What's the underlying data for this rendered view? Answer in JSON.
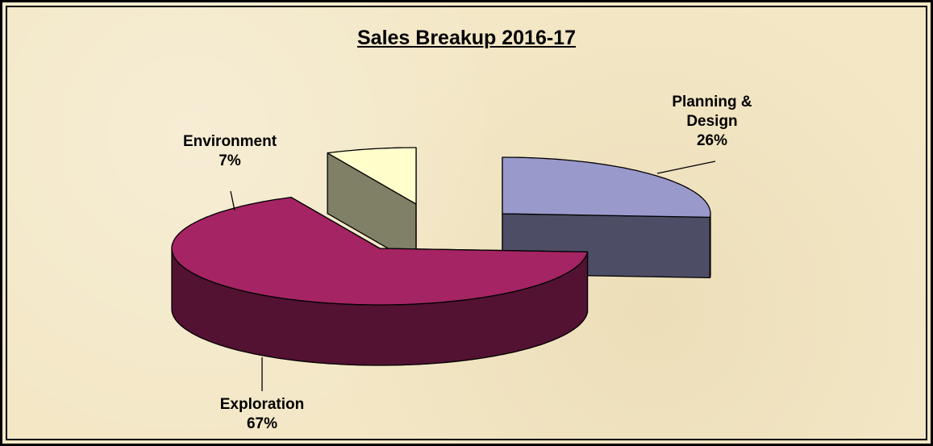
{
  "chart_data": {
    "type": "pie3d",
    "title": "Sales Breakup 2016-17",
    "categories": [
      "Planning & Design",
      "Exploration",
      "Environment"
    ],
    "values": [
      26,
      67,
      7
    ],
    "value_labels": [
      "26%",
      "67%",
      "7%"
    ],
    "colors": [
      "#9999cc",
      "#a52463",
      "#ffffcc"
    ]
  }
}
